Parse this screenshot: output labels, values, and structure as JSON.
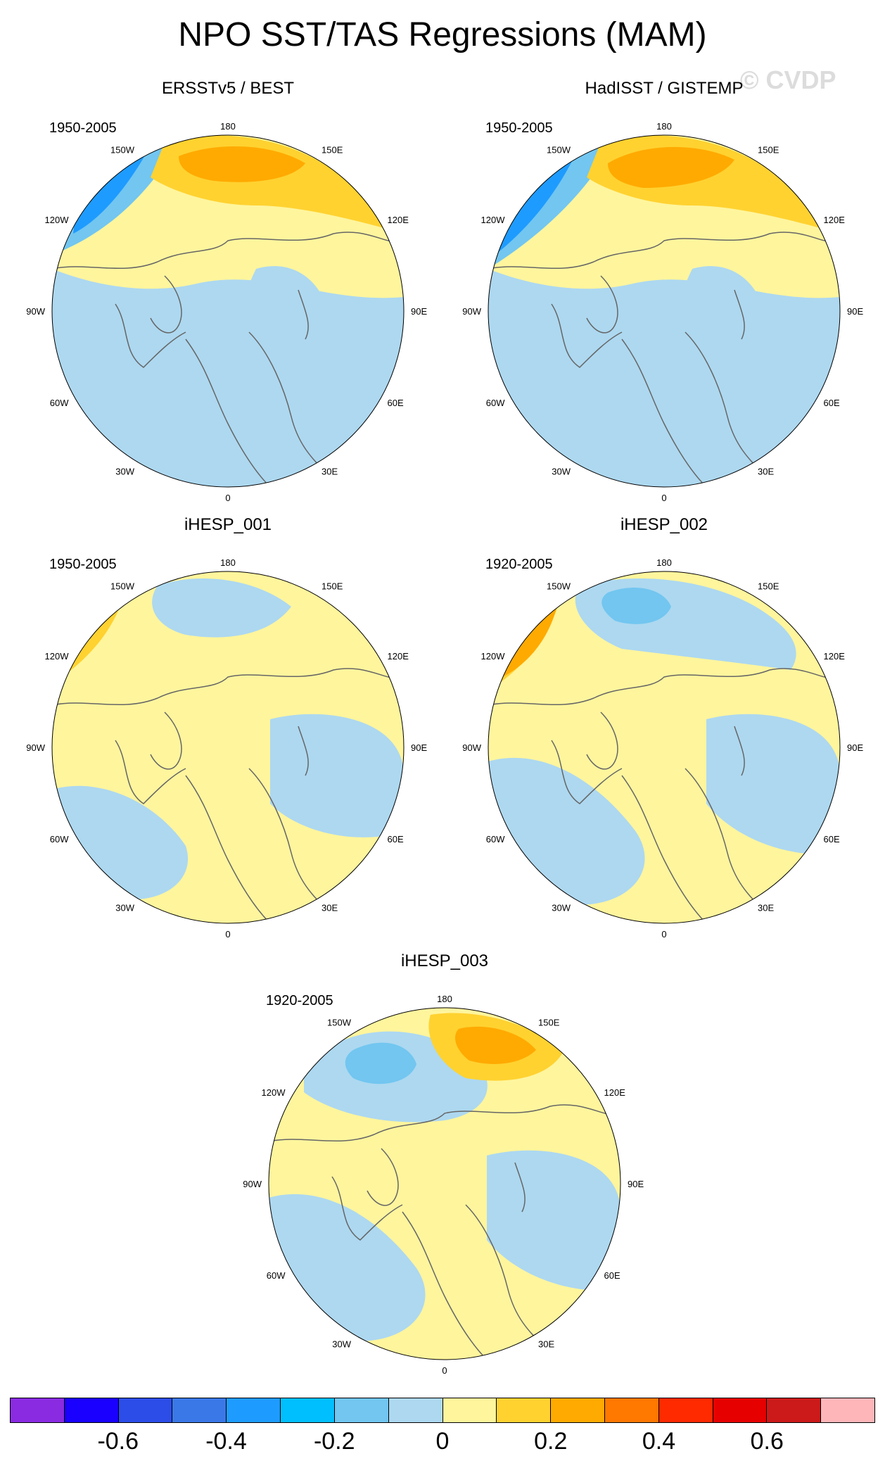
{
  "title": "NPO SST/TAS Regressions (MAM)",
  "watermark": "© CVDP",
  "lon_labels": {
    "north": "180",
    "south": "0",
    "west": "90W",
    "east": "90E",
    "nw1": "150W",
    "nw2": "120W",
    "sw1": "60W",
    "sw2": "30W",
    "ne1": "150E",
    "ne2": "120E",
    "se1": "60E",
    "se2": "30E"
  },
  "panels": [
    {
      "title": "ERSSTv5 / BEST",
      "period": "1950-2005"
    },
    {
      "title": "HadISST / GISTEMP",
      "period": "1950-2005"
    },
    {
      "title": "iHESP_001",
      "period": "1950-2005"
    },
    {
      "title": "iHESP_002",
      "period": "1920-2005"
    },
    {
      "title": "iHESP_003",
      "period": "1920-2005"
    }
  ],
  "colorbar": {
    "colors": [
      "#8a2be2",
      "#1a00ff",
      "#2c4de8",
      "#3a78e8",
      "#1e9bff",
      "#00bfff",
      "#72c6f0",
      "#add8f0",
      "#fff59d",
      "#ffd230",
      "#ffaa00",
      "#ff7800",
      "#ff2a00",
      "#e60000",
      "#cc1a1a",
      "#ffb6b9"
    ],
    "labels": [
      "-0.6",
      "-0.4",
      "-0.2",
      "0",
      "0.2",
      "0.4",
      "0.6"
    ],
    "label_values": [
      -0.6,
      -0.4,
      -0.2,
      0,
      0.2,
      0.4,
      0.6
    ],
    "range": [
      -0.8,
      0.8
    ]
  },
  "palette": {
    "light_blue": "#add8f0",
    "blue": "#72c6f0",
    "mid_blue": "#1e9bff",
    "pale_yellow": "#fff59d",
    "yellow": "#ffd230",
    "orange": "#ffaa00",
    "red": "#e60000",
    "coast": "#666666"
  }
}
